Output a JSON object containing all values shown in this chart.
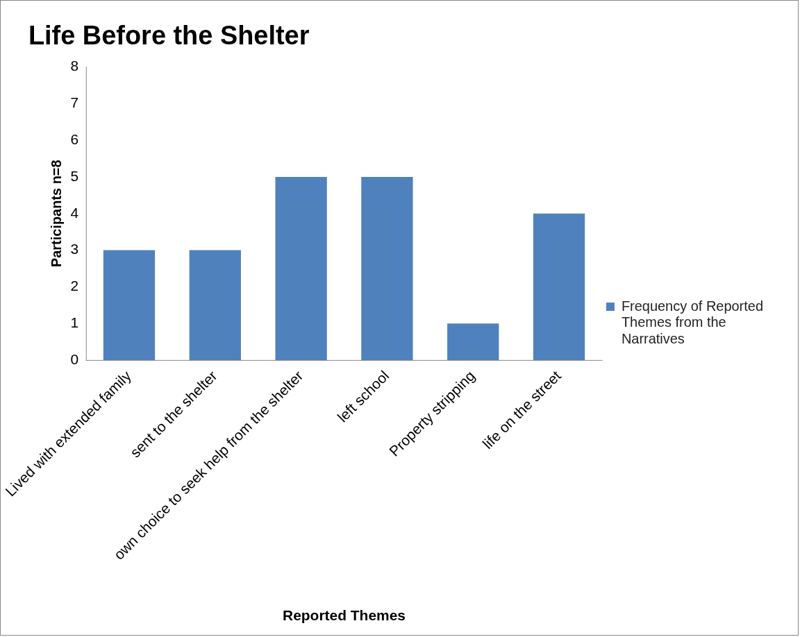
{
  "chart_data": {
    "type": "bar",
    "title": "Life Before the Shelter",
    "xlabel": "Reported Themes",
    "ylabel": "Participants n=8",
    "categories": [
      "Lived with extended family",
      "sent to the shelter",
      "own choice to seek help from the shelter",
      "left school",
      "Property stripping",
      "life on the street"
    ],
    "series": [
      {
        "name": "Frequency of Reported Themes from the Narratives",
        "color": "#4f81bd",
        "values": [
          3,
          3,
          5,
          5,
          1,
          4
        ]
      }
    ],
    "ylim": [
      0,
      8
    ],
    "yticks": [
      0,
      1,
      2,
      3,
      4,
      5,
      6,
      7,
      8
    ],
    "grid": false,
    "legend": "right"
  }
}
